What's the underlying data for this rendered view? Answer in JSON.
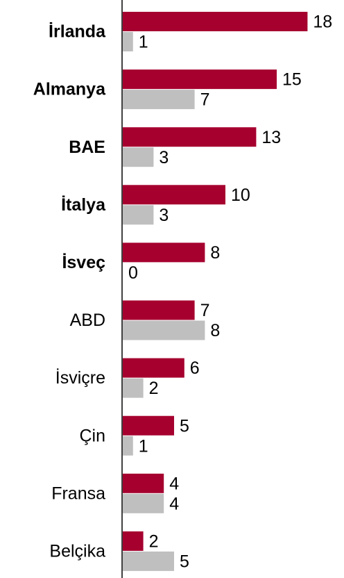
{
  "chart_data": {
    "type": "bar",
    "orientation": "horizontal",
    "categories": [
      "İrlanda",
      "Almanya",
      "BAE",
      "İtalya",
      "İsveç",
      "ABD",
      "İsviçre",
      "Çin",
      "Fransa",
      "Belçika"
    ],
    "bold": [
      true,
      true,
      true,
      true,
      true,
      false,
      false,
      false,
      false,
      false
    ],
    "series": [
      {
        "color": "#a6002f",
        "values": [
          18,
          15,
          13,
          10,
          8,
          7,
          6,
          5,
          4,
          2
        ]
      },
      {
        "color": "#bfbfbf",
        "values": [
          1,
          7,
          3,
          3,
          0,
          8,
          2,
          1,
          4,
          5
        ]
      }
    ]
  }
}
